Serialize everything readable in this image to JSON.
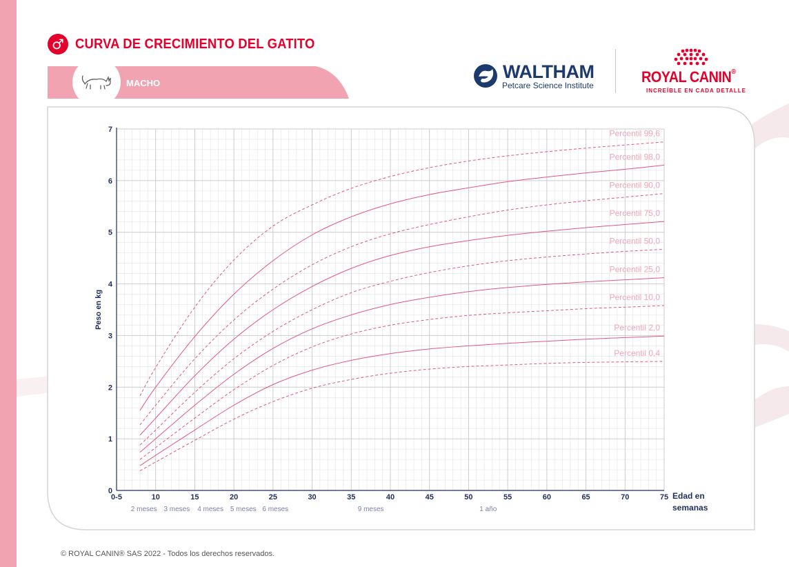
{
  "header": {
    "title": "CURVA DE CRECIMIENTO DEL GATITO",
    "gender_symbol": "♂",
    "sex_label": "MACHO",
    "accent_color": "#e4002b",
    "band_color": "#f2a3b1"
  },
  "logos": {
    "waltham_name": "WALTHAM",
    "waltham_sub": "Petcare Science Institute",
    "royal_canin_name": "ROYAL CANIN",
    "royal_canin_reg": "®",
    "royal_canin_tagline": "INCREÍBLE EN CADA DETALLE"
  },
  "chart_data": {
    "type": "line",
    "title": "CURVA DE CRECIMIENTO DEL GATITO",
    "xlabel_line1": "Edad en",
    "xlabel_line2": "semanas",
    "ylabel": "Peso en kg",
    "xlim": [
      5,
      75
    ],
    "ylim": [
      0,
      7
    ],
    "x_ticks": [
      {
        "v": 5,
        "label": "0-5"
      },
      {
        "v": 10,
        "label": "10"
      },
      {
        "v": 15,
        "label": "15"
      },
      {
        "v": 20,
        "label": "20"
      },
      {
        "v": 25,
        "label": "25"
      },
      {
        "v": 30,
        "label": "30"
      },
      {
        "v": 35,
        "label": "35"
      },
      {
        "v": 40,
        "label": "40"
      },
      {
        "v": 45,
        "label": "45"
      },
      {
        "v": 50,
        "label": "50"
      },
      {
        "v": 55,
        "label": "55"
      },
      {
        "v": 60,
        "label": "60"
      },
      {
        "v": 65,
        "label": "65"
      },
      {
        "v": 70,
        "label": "70"
      },
      {
        "v": 75,
        "label": "75"
      }
    ],
    "y_ticks": [
      0,
      1,
      2,
      3,
      4,
      5,
      6,
      7
    ],
    "age_labels": [
      {
        "v": 8.5,
        "label": "2 meses"
      },
      {
        "v": 12.7,
        "label": "3 meses"
      },
      {
        "v": 17,
        "label": "4 meses"
      },
      {
        "v": 21.2,
        "label": "5 meses"
      },
      {
        "v": 25.3,
        "label": "6 meses"
      },
      {
        "v": 37.5,
        "label": "9 meses"
      },
      {
        "v": 52.5,
        "label": "1 año"
      }
    ],
    "x": [
      8,
      10,
      15,
      20,
      25,
      30,
      35,
      40,
      45,
      50,
      55,
      60,
      65,
      70,
      75
    ],
    "series": [
      {
        "name": "Percentil 99,6",
        "style": "dashed",
        "values": [
          1.83,
          2.38,
          3.55,
          4.46,
          5.12,
          5.53,
          5.85,
          6.08,
          6.25,
          6.38,
          6.48,
          6.56,
          6.63,
          6.69,
          6.75
        ]
      },
      {
        "name": "Percentil 98,0",
        "style": "solid",
        "values": [
          1.55,
          2.0,
          2.98,
          3.8,
          4.45,
          4.95,
          5.3,
          5.55,
          5.73,
          5.86,
          5.98,
          6.07,
          6.15,
          6.22,
          6.3
        ]
      },
      {
        "name": "Percentil 90,0",
        "style": "dashed",
        "values": [
          1.27,
          1.65,
          2.55,
          3.3,
          3.9,
          4.37,
          4.72,
          4.97,
          5.15,
          5.3,
          5.43,
          5.53,
          5.61,
          5.68,
          5.75
        ]
      },
      {
        "name": "Percentil 75,0",
        "style": "solid",
        "values": [
          1.07,
          1.4,
          2.22,
          2.93,
          3.5,
          3.95,
          4.3,
          4.55,
          4.72,
          4.84,
          4.94,
          5.02,
          5.09,
          5.15,
          5.21
        ]
      },
      {
        "name": "Percentil 50,0",
        "style": "dashed",
        "values": [
          0.88,
          1.17,
          1.9,
          2.55,
          3.08,
          3.5,
          3.83,
          4.05,
          4.22,
          4.35,
          4.45,
          4.52,
          4.58,
          4.63,
          4.67
        ]
      },
      {
        "name": "Percentil 25,0",
        "style": "solid",
        "values": [
          0.74,
          1.0,
          1.65,
          2.25,
          2.75,
          3.13,
          3.4,
          3.6,
          3.74,
          3.85,
          3.93,
          3.99,
          4.04,
          4.08,
          4.12
        ]
      },
      {
        "name": "Percentil 10,0",
        "style": "dashed",
        "values": [
          0.6,
          0.83,
          1.4,
          1.95,
          2.42,
          2.78,
          3.03,
          3.2,
          3.31,
          3.39,
          3.44,
          3.48,
          3.52,
          3.55,
          3.58
        ]
      },
      {
        "name": "Percentil 2,0",
        "style": "solid",
        "values": [
          0.48,
          0.68,
          1.17,
          1.65,
          2.05,
          2.33,
          2.52,
          2.65,
          2.74,
          2.8,
          2.85,
          2.89,
          2.93,
          2.96,
          2.99
        ]
      },
      {
        "name": "Percentil 0,4",
        "style": "dashed",
        "values": [
          0.38,
          0.55,
          0.97,
          1.38,
          1.72,
          1.98,
          2.15,
          2.27,
          2.35,
          2.4,
          2.43,
          2.46,
          2.48,
          2.49,
          2.5
        ]
      }
    ],
    "label_color": "#f0a4b6",
    "line_color": "#e2577d",
    "grid_color": "#c9c9c9"
  },
  "footer": {
    "copyright": "© ROYAL CANIN® SAS 2022 - Todos los derechos reservados."
  }
}
